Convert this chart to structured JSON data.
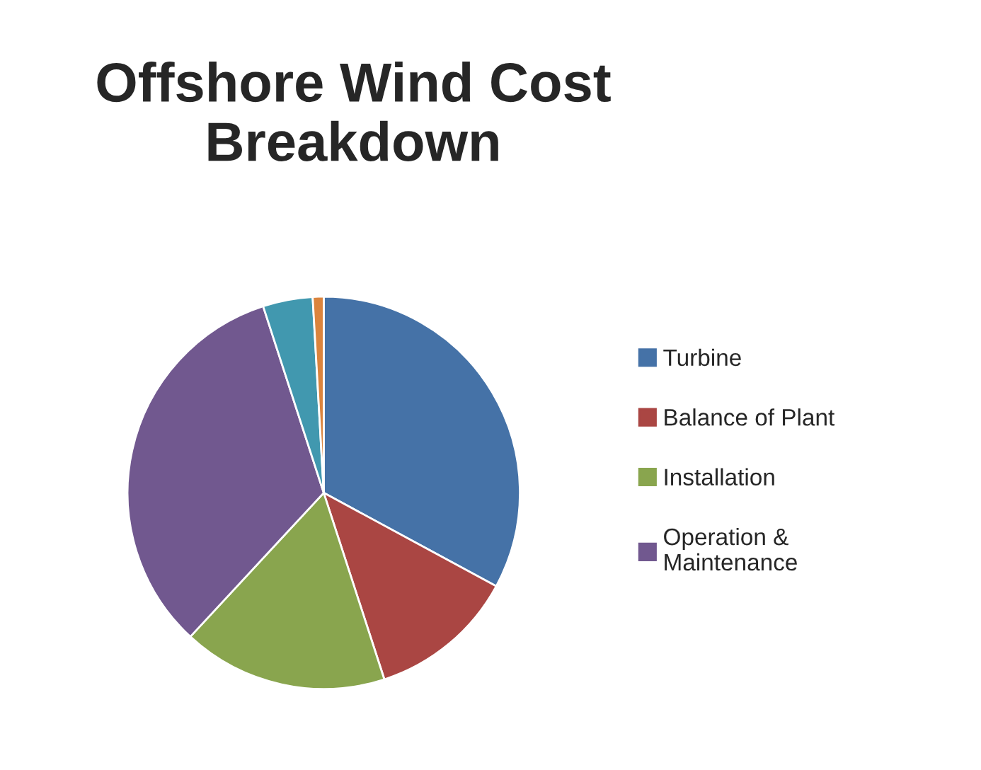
{
  "chart_data": {
    "type": "pie",
    "title": "Offshore Wind Cost Breakdown",
    "categories": [
      "Turbine",
      "Balance of Plant",
      "Installation",
      "Operation & Maintenance",
      null,
      null
    ],
    "values": [
      32.9,
      12.1,
      16.9,
      33.1,
      4.1,
      0.9
    ],
    "colors": [
      "#4572a7",
      "#aa4643",
      "#89a54e",
      "#71588f",
      "#4198af",
      "#db843d"
    ],
    "legend": "right"
  }
}
